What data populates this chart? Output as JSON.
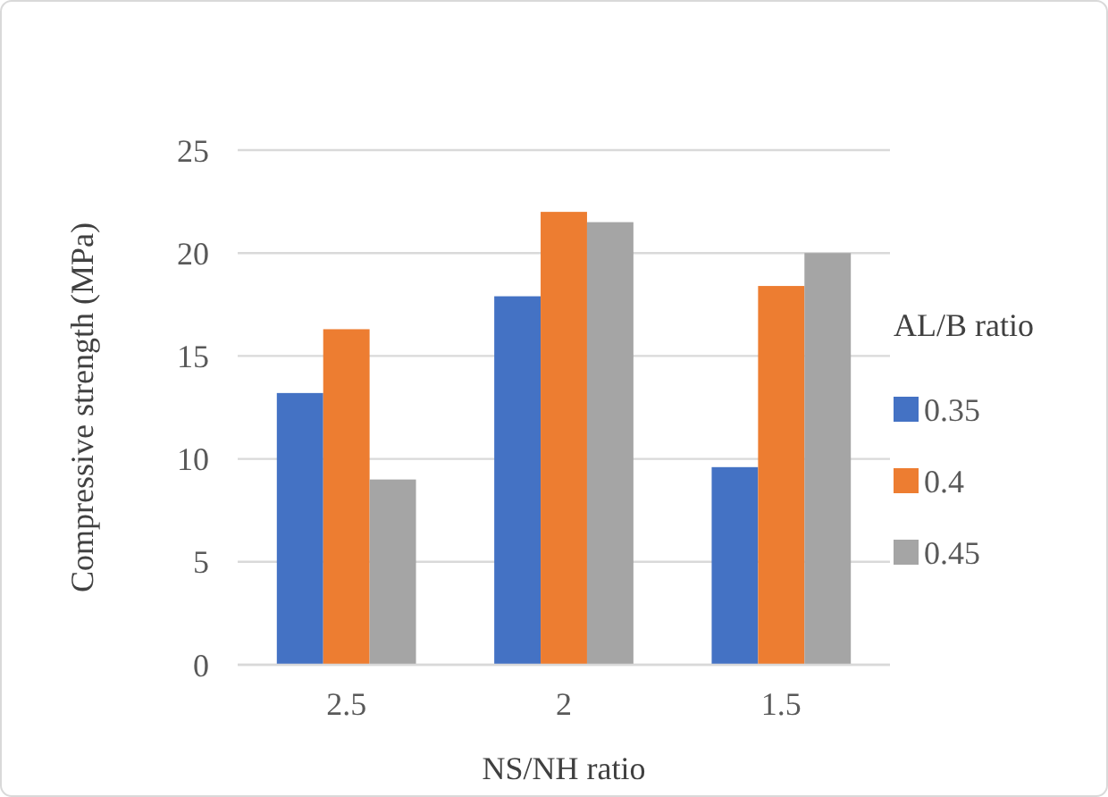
{
  "chart_data": {
    "type": "bar",
    "xlabel": "NS/NH ratio",
    "ylabel": "Compressive strength (MPa)",
    "legend_title": "AL/B ratio",
    "categories": [
      "2.5",
      "2",
      "1.5"
    ],
    "series": [
      {
        "name": "0.35",
        "color": "#4472c4",
        "values": [
          13.2,
          17.9,
          9.6
        ]
      },
      {
        "name": "0.4",
        "color": "#ed7d31",
        "values": [
          16.3,
          22.0,
          18.4
        ]
      },
      {
        "name": "0.45",
        "color": "#a5a5a5",
        "values": [
          9.0,
          21.5,
          20.0
        ]
      }
    ],
    "ylim": [
      0,
      25
    ],
    "yticks": [
      0,
      5,
      10,
      15,
      20,
      25
    ],
    "grid": "y",
    "legend": "right"
  }
}
